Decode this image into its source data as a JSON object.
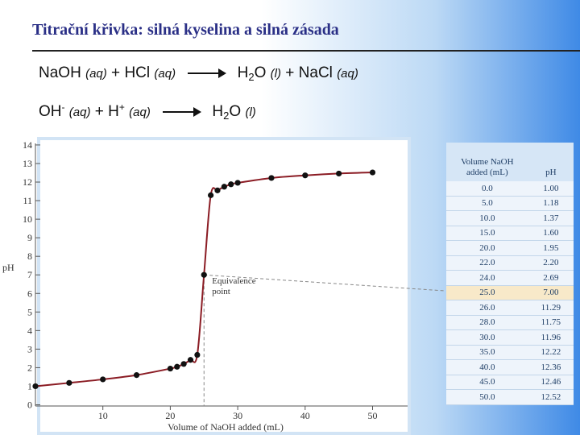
{
  "title": "Titrační křivka: silná kyselina a silná zásada",
  "equation1": {
    "left": "NaOH",
    "left_state": "(aq)",
    "plus1": "+",
    "reagent": "HCl",
    "reagent_state": "(aq)",
    "product1_a": "H",
    "product1_sub": "2",
    "product1_b": "O",
    "product1_state": "(l)",
    "plus2": "+",
    "product2": "NaCl",
    "product2_state": "(aq)"
  },
  "equation2": {
    "ion1": "OH",
    "ion1_sup": "-",
    "ion1_state": "(aq)",
    "plus": "+",
    "ion2": "H",
    "ion2_sup": "+",
    "ion2_state": "(aq)",
    "product_a": "H",
    "product_sub": "2",
    "product_b": "O",
    "product_state": "(l)"
  },
  "table": {
    "col1_header_line1": "Volume NaOH",
    "col1_header_line2": "added (mL)",
    "col2_header": "pH",
    "rows": [
      [
        "0.0",
        "1.00"
      ],
      [
        "5.0",
        "1.18"
      ],
      [
        "10.0",
        "1.37"
      ],
      [
        "15.0",
        "1.60"
      ],
      [
        "20.0",
        "1.95"
      ],
      [
        "22.0",
        "2.20"
      ],
      [
        "24.0",
        "2.69"
      ],
      [
        "25.0",
        "7.00"
      ],
      [
        "26.0",
        "11.29"
      ],
      [
        "28.0",
        "11.75"
      ],
      [
        "30.0",
        "11.96"
      ],
      [
        "35.0",
        "12.22"
      ],
      [
        "40.0",
        "12.36"
      ],
      [
        "45.0",
        "12.46"
      ],
      [
        "50.0",
        "12.52"
      ]
    ],
    "highlight_row_index": 7,
    "highlight_color": "#f8e9c9"
  },
  "chart_data": {
    "type": "line",
    "xlabel": "Volume of NaOH added (mL)",
    "ylabel": "pH",
    "xlim": [
      0,
      55
    ],
    "ylim": [
      0,
      14
    ],
    "xticks": [
      10,
      20,
      30,
      40,
      50
    ],
    "yticks": [
      0,
      1,
      2,
      3,
      4,
      5,
      6,
      7,
      8,
      9,
      10,
      11,
      12,
      13,
      14
    ],
    "annotation": {
      "line1": "Equivalence",
      "line2": "point",
      "x": 25.0,
      "y": 7.0
    },
    "curve_color": "#8b1c24",
    "point_color": "#111111",
    "series": [
      {
        "x": [
          0.0,
          5.0,
          10.0,
          15.0,
          20.0,
          21.0,
          22.0,
          23.0,
          24.0,
          25.0,
          26.0,
          27.0,
          28.0,
          29.0,
          30.0,
          35.0,
          40.0,
          45.0,
          50.0
        ],
        "y": [
          1.0,
          1.18,
          1.37,
          1.6,
          1.95,
          2.05,
          2.2,
          2.42,
          2.69,
          7.0,
          11.29,
          11.55,
          11.75,
          11.88,
          11.96,
          12.22,
          12.36,
          12.46,
          12.52
        ]
      }
    ]
  }
}
